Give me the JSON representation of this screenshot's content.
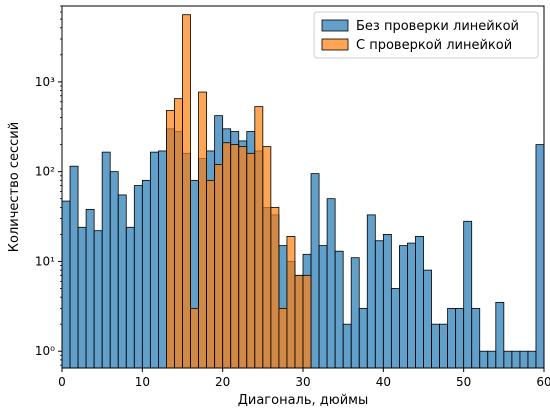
{
  "chart_data": {
    "type": "bar",
    "xlabel": "Диагональ, дюймы",
    "ylabel": "Количество сессий",
    "xlim": [
      0,
      60
    ],
    "ylim": [
      0.65,
      7000
    ],
    "yscale": "log",
    "bin_width": 1,
    "grid": false,
    "legend_position": "top-right",
    "x_ticks": [
      0,
      10,
      20,
      30,
      40,
      50,
      60
    ],
    "x_tick_labels": [
      "0",
      "10",
      "20",
      "30",
      "40",
      "50",
      "60"
    ],
    "y_ticks": [
      1,
      10,
      100,
      1000
    ],
    "y_tick_labels": [
      "10⁰",
      "10¹",
      "10²",
      "10³"
    ],
    "series": [
      {
        "name": "Без проверки линейкой",
        "color": "#1f77b4",
        "bins": [
          [
            0,
            47
          ],
          [
            1,
            115
          ],
          [
            2,
            24
          ],
          [
            3,
            38
          ],
          [
            4,
            22
          ],
          [
            5,
            165
          ],
          [
            6,
            100
          ],
          [
            7,
            55
          ],
          [
            8,
            24
          ],
          [
            9,
            70
          ],
          [
            10,
            80
          ],
          [
            11,
            165
          ],
          [
            12,
            170
          ],
          [
            13,
            300
          ],
          [
            14,
            280
          ],
          [
            15,
            160
          ],
          [
            16,
            80
          ],
          [
            17,
            140
          ],
          [
            18,
            170
          ],
          [
            19,
            420
          ],
          [
            20,
            300
          ],
          [
            21,
            280
          ],
          [
            22,
            220
          ],
          [
            23,
            280
          ],
          [
            24,
            170
          ],
          [
            25,
            40
          ],
          [
            26,
            33
          ],
          [
            27,
            15
          ],
          [
            28,
            10
          ],
          [
            29,
            7
          ],
          [
            30,
            12
          ],
          [
            31,
            95
          ],
          [
            32,
            15
          ],
          [
            33,
            50
          ],
          [
            34,
            13
          ],
          [
            35,
            2
          ],
          [
            36,
            11
          ],
          [
            37,
            3
          ],
          [
            38,
            33
          ],
          [
            39,
            17
          ],
          [
            40,
            20
          ],
          [
            41,
            5
          ],
          [
            42,
            15
          ],
          [
            43,
            16
          ],
          [
            44,
            19
          ],
          [
            45,
            8
          ],
          [
            46,
            2
          ],
          [
            47,
            2
          ],
          [
            48,
            3
          ],
          [
            49,
            3
          ],
          [
            50,
            28
          ],
          [
            51,
            3
          ],
          [
            52,
            1
          ],
          [
            53,
            1
          ],
          [
            54,
            3.5
          ],
          [
            55,
            1
          ],
          [
            56,
            1
          ],
          [
            57,
            1
          ],
          [
            58,
            1
          ],
          [
            59,
            200
          ]
        ]
      },
      {
        "name": "С проверкой линейкой",
        "color": "#ff7f0e",
        "bins": [
          [
            13,
            480
          ],
          [
            14,
            650
          ],
          [
            15,
            5600
          ],
          [
            16,
            3
          ],
          [
            17,
            770
          ],
          [
            18,
            80
          ],
          [
            19,
            120
          ],
          [
            20,
            210
          ],
          [
            21,
            200
          ],
          [
            22,
            190
          ],
          [
            23,
            160
          ],
          [
            24,
            530
          ],
          [
            25,
            190
          ],
          [
            26,
            40
          ],
          [
            27,
            3
          ],
          [
            28,
            19
          ],
          [
            29,
            7
          ],
          [
            30,
            7
          ]
        ]
      }
    ]
  }
}
